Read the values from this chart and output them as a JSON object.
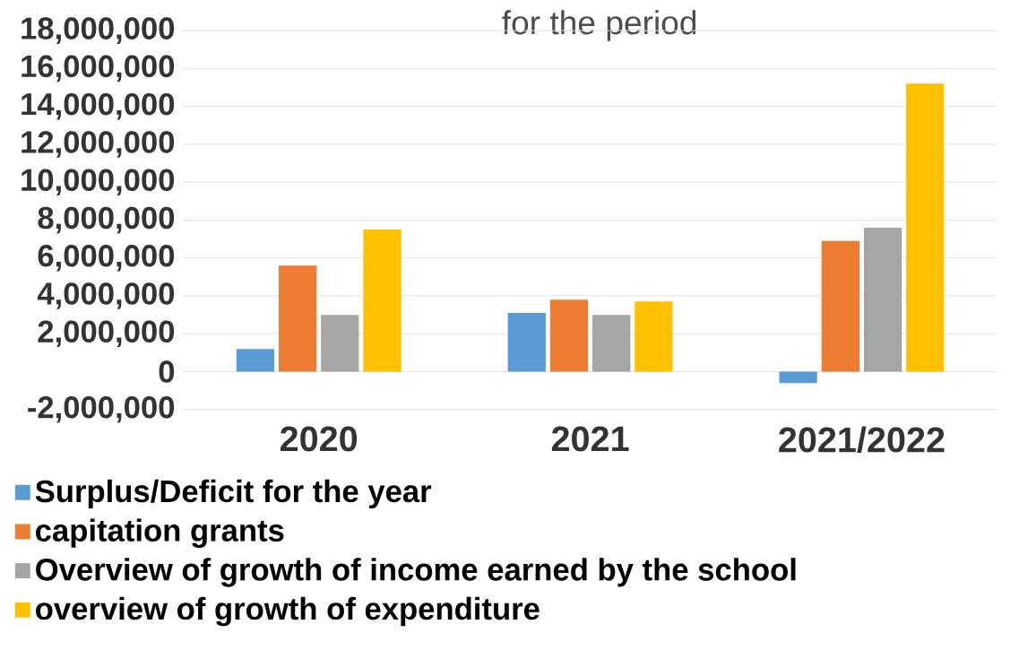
{
  "chart_data": {
    "type": "bar",
    "title": "for the period",
    "categories": [
      "2020",
      "2021",
      "2021/2022"
    ],
    "series": [
      {
        "name": "Surplus/Deficit for the year",
        "color": "#5b9bd5",
        "values": [
          1200000,
          3100000,
          -600000
        ]
      },
      {
        "name": "capitation grants",
        "color": "#ed7d31",
        "values": [
          5600000,
          3800000,
          6900000
        ]
      },
      {
        "name": "Overview of growth of income earned by the school",
        "color": "#a5a5a5",
        "values": [
          3000000,
          3000000,
          7600000
        ]
      },
      {
        "name": "overview of growth of expenditure",
        "color": "#ffc000",
        "values": [
          7500000,
          3700000,
          15200000
        ]
      }
    ],
    "ylim": [
      -2000000,
      18000000
    ],
    "yticks": [
      {
        "value": -2000000,
        "label": "-2,000,000"
      },
      {
        "value": 0,
        "label": "0"
      },
      {
        "value": 2000000,
        "label": "2,000,000"
      },
      {
        "value": 4000000,
        "label": "4,000,000"
      },
      {
        "value": 6000000,
        "label": "6,000,000"
      },
      {
        "value": 8000000,
        "label": "8,000,000"
      },
      {
        "value": 10000000,
        "label": "10,000,000"
      },
      {
        "value": 12000000,
        "label": "12,000,000"
      },
      {
        "value": 14000000,
        "label": "14,000,000"
      },
      {
        "value": 16000000,
        "label": "16,000,000"
      },
      {
        "value": 18000000,
        "label": "18,000,000"
      }
    ],
    "grid": "y",
    "legend": "bottom"
  }
}
